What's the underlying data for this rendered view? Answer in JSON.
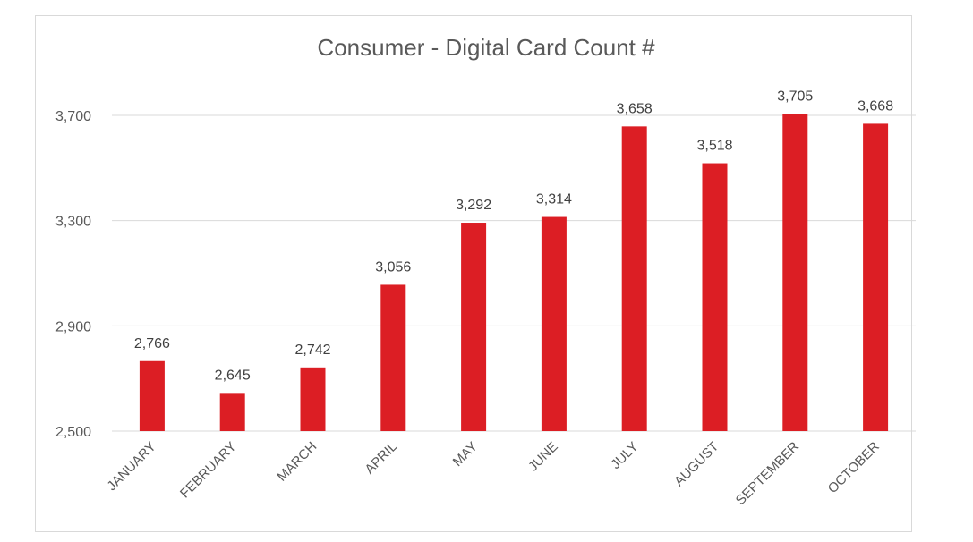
{
  "chart_data": {
    "type": "bar",
    "title": "Consumer - Digital  Card Count #",
    "xlabel": "",
    "ylabel": "",
    "categories": [
      "JANUARY",
      "FEBRUARY",
      "MARCH",
      "APRIL",
      "MAY",
      "JUNE",
      "JULY",
      "AUGUST",
      "SEPTEMBER",
      "OCTOBER"
    ],
    "values": [
      2766,
      2645,
      2742,
      3056,
      3292,
      3314,
      3658,
      3518,
      3705,
      3668
    ],
    "data_labels": [
      "2,766",
      "2,645",
      "2,742",
      "3,056",
      "3,292",
      "3,314",
      "3,658",
      "3,518",
      "3,705",
      "3,668"
    ],
    "yticks": [
      2500,
      2900,
      3300,
      3700
    ],
    "ytick_labels": [
      "2,500",
      "2,900",
      "3,300",
      "3,700"
    ],
    "ylim": [
      2500,
      3800
    ],
    "grid": true,
    "legend": "none",
    "bar_color": "#dc1e24",
    "grid_color": "#d9d9d9"
  }
}
